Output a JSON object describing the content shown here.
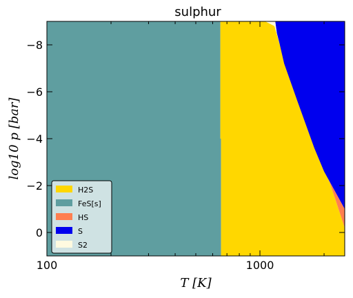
{
  "chart_data": {
    "type": "area",
    "title": "sulphur",
    "xlabel": "T [K]",
    "ylabel": "log10 p [bar]",
    "xscale": "log",
    "xlim": [
      100,
      2500
    ],
    "ylim": [
      1,
      -9
    ],
    "y_inverted": true,
    "xticks": [
      100,
      1000
    ],
    "xtick_labels": [
      "100",
      "1000"
    ],
    "yticks": [
      0,
      -2,
      -4,
      -6,
      -8
    ],
    "ytick_labels": [
      "0",
      "−2",
      "−4",
      "−6",
      "−8"
    ],
    "legend_position": "lower-left",
    "series": [
      {
        "name": "H2S",
        "color": "#ffd700"
      },
      {
        "name": "FeS[s]",
        "color": "#5f9ea0"
      },
      {
        "name": "HS",
        "color": "#ff7f50"
      },
      {
        "name": "S",
        "color": "#0000ee"
      },
      {
        "name": "S2",
        "color": "#fffae0"
      }
    ],
    "regions": [
      {
        "species": "FeS[s]",
        "color": "#5f9ea0",
        "polygon": [
          [
            100,
            1
          ],
          [
            100,
            -9
          ],
          [
            652,
            -9
          ],
          [
            652,
            -4.0
          ],
          [
            657,
            -4.0
          ],
          [
            657,
            1
          ]
        ]
      },
      {
        "species": "H2S",
        "color": "#ffd700",
        "polygon": [
          [
            652,
            -9
          ],
          [
            1060,
            -9
          ],
          [
            1170,
            -8.8
          ],
          [
            1240,
            -8.0
          ],
          [
            1400,
            -6.5
          ],
          [
            1600,
            -5.0
          ],
          [
            1900,
            -3.3
          ],
          [
            2150,
            -2.0
          ],
          [
            2500,
            -0.2
          ],
          [
            2500,
            1
          ],
          [
            657,
            1
          ],
          [
            657,
            -4.0
          ],
          [
            652,
            -4.0
          ]
        ]
      },
      {
        "species": "HS",
        "color": "#ff7f50",
        "polygon": [
          [
            1240,
            -8.0
          ],
          [
            1400,
            -6.5
          ],
          [
            1600,
            -5.0
          ],
          [
            1900,
            -3.3
          ],
          [
            2150,
            -2.0
          ],
          [
            2500,
            -0.2
          ],
          [
            2500,
            -1.0
          ],
          [
            2300,
            -1.6
          ],
          [
            2000,
            -2.6
          ],
          [
            1800,
            -3.6
          ],
          [
            1500,
            -5.6
          ],
          [
            1300,
            -7.2
          ]
        ]
      },
      {
        "species": "S",
        "color": "#0000ee",
        "polygon": [
          [
            1180,
            -9
          ],
          [
            2500,
            -9
          ],
          [
            2500,
            -1.0
          ],
          [
            2300,
            -1.6
          ],
          [
            2000,
            -2.6
          ],
          [
            1800,
            -3.6
          ],
          [
            1500,
            -5.6
          ],
          [
            1300,
            -7.2
          ],
          [
            1240,
            -8.0
          ],
          [
            1200,
            -8.5
          ]
        ]
      },
      {
        "species": "S2",
        "color": "#fffae0",
        "polygon": [
          [
            1060,
            -9
          ],
          [
            1180,
            -9
          ],
          [
            1200,
            -8.5
          ],
          [
            1240,
            -8.0
          ],
          [
            1170,
            -8.8
          ]
        ]
      }
    ]
  }
}
